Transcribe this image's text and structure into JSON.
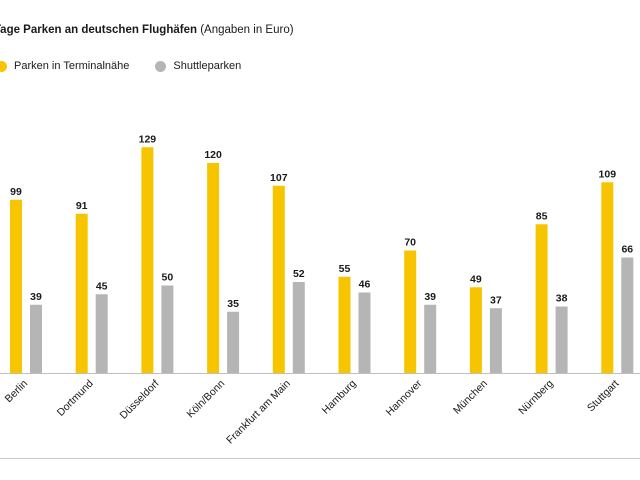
{
  "title": {
    "bold": "Tage Parken an deutschen Flughäfen",
    "note": "(Angaben in Euro)"
  },
  "colors": {
    "terminal": "#f7c500",
    "shuttle": "#b5b5b5",
    "axis": "#bfbfbf"
  },
  "chart_data": {
    "type": "bar",
    "title": "Tage Parken an deutschen Flughäfen (Angaben in Euro)",
    "xlabel": "",
    "ylabel": "",
    "ylim": [
      0,
      140
    ],
    "grid": false,
    "legend_position": "top-left",
    "categories": [
      "Berlin",
      "Dortmund",
      "Düsseldorf",
      "Köln/Bonn",
      "Frankfurt am Main",
      "Hamburg",
      "Hannover",
      "München",
      "Nürnberg",
      "Stuttgart"
    ],
    "series": [
      {
        "name": "Parken in Terminalnähe",
        "values": [
          99,
          91,
          129,
          120,
          107,
          55,
          70,
          49,
          85,
          109
        ]
      },
      {
        "name": "Shuttleparken",
        "values": [
          39,
          45,
          50,
          35,
          52,
          46,
          39,
          37,
          38,
          66
        ]
      }
    ]
  }
}
